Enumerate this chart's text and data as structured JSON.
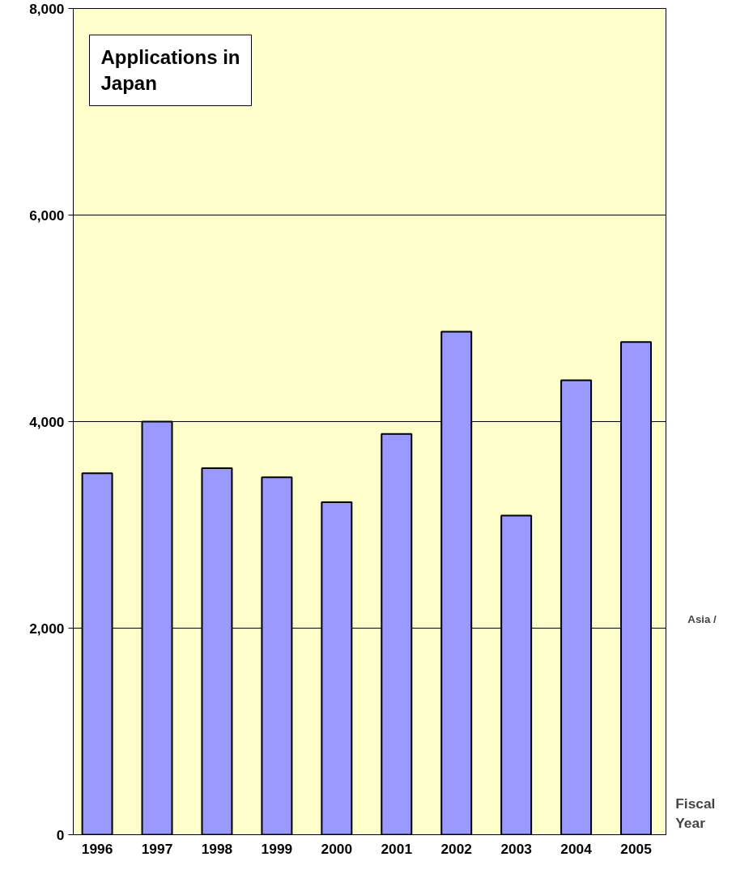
{
  "chart_data": {
    "type": "bar",
    "title": "Applications in Japan",
    "xlabel": "Fiscal Year",
    "categories": [
      "1996",
      "1997",
      "1998",
      "1999",
      "2000",
      "2001",
      "2002",
      "2003",
      "2004",
      "2005"
    ],
    "values": [
      3500,
      4000,
      3550,
      3460,
      3220,
      3880,
      4870,
      3090,
      4400,
      4770
    ],
    "color": "#9999ff",
    "ylim": [
      0,
      8000
    ],
    "yticks": [
      {
        "value": 0,
        "label": "0"
      },
      {
        "value": 2000,
        "label": "2,000"
      },
      {
        "value": 4000,
        "label": "4,000"
      },
      {
        "value": 6000,
        "label": "6,000"
      },
      {
        "value": 8000,
        "label": "8,000"
      }
    ],
    "grid": "y",
    "annotations": [
      "Asia /"
    ]
  }
}
